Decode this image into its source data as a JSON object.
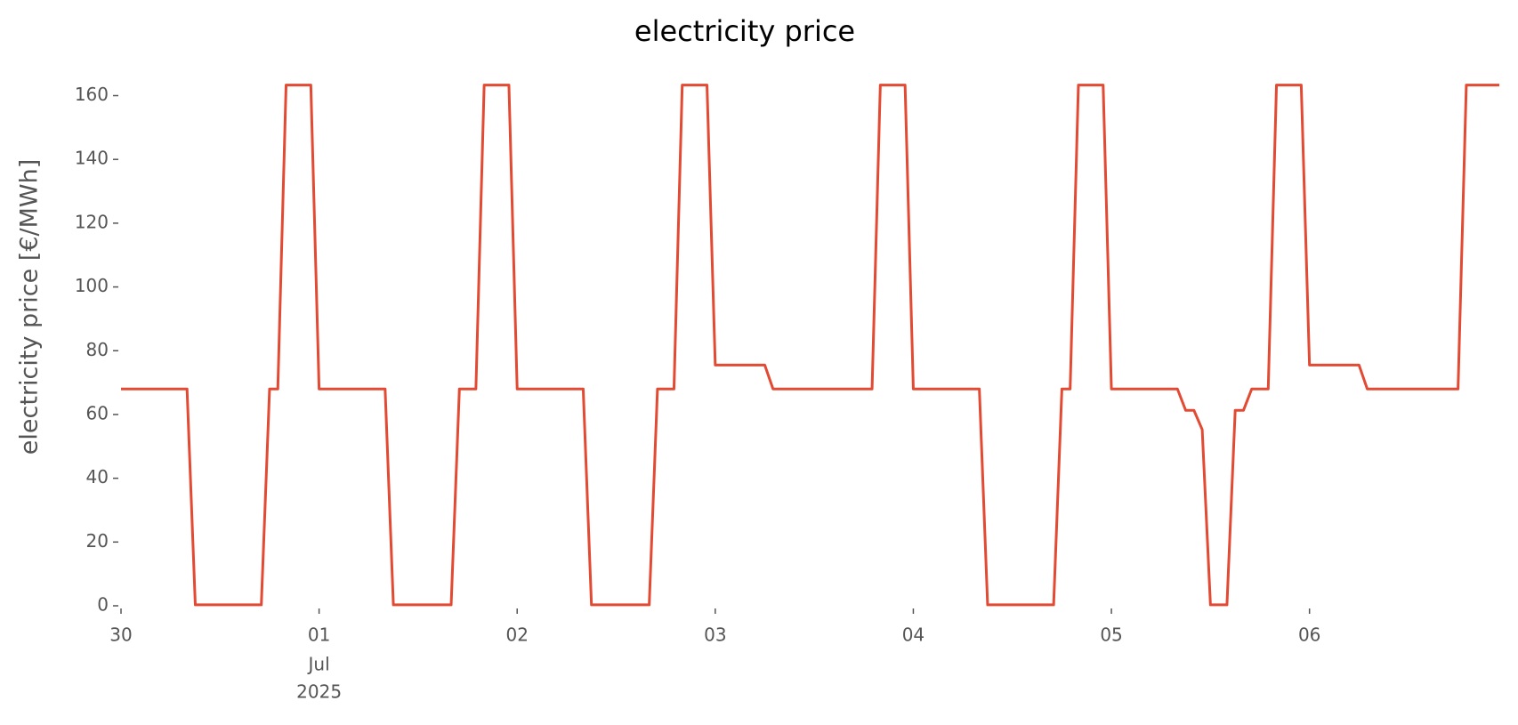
{
  "chart_data": {
    "type": "line",
    "title": "electricity price",
    "ylabel": "electricity price [€/MWh]",
    "x": [
      0,
      1,
      2,
      3,
      4,
      5,
      6,
      7,
      8,
      9,
      10,
      11,
      12,
      13,
      14,
      15,
      16,
      17,
      18,
      19,
      20,
      21,
      22,
      23,
      24,
      25,
      26,
      27,
      28,
      29,
      30,
      31,
      32,
      33,
      34,
      35,
      36,
      37,
      38,
      39,
      40,
      41,
      42,
      43,
      44,
      45,
      46,
      47,
      48,
      49,
      50,
      51,
      52,
      53,
      54,
      55,
      56,
      57,
      58,
      59,
      60,
      61,
      62,
      63,
      64,
      65,
      66,
      67,
      68,
      69,
      70,
      71,
      72,
      73,
      74,
      75,
      76,
      77,
      78,
      79,
      80,
      81,
      82,
      83,
      84,
      85,
      86,
      87,
      88,
      89,
      90,
      91,
      92,
      93,
      94,
      95,
      96,
      97,
      98,
      99,
      100,
      101,
      102,
      103,
      104,
      105,
      106,
      107,
      108,
      109,
      110,
      111,
      112,
      113,
      114,
      115,
      116,
      117,
      118,
      119,
      120,
      121,
      122,
      123,
      124,
      125,
      126,
      127,
      128,
      129,
      130,
      131,
      132,
      133,
      134,
      135,
      136,
      137,
      138,
      139,
      140,
      141,
      142,
      143,
      144,
      145,
      146,
      147,
      148,
      149,
      150,
      151,
      152,
      153,
      154,
      155,
      156,
      157,
      158,
      159,
      160,
      161,
      162,
      163,
      164,
      165,
      166,
      167
    ],
    "series": [
      {
        "name": "electricity price",
        "color": "#e24a33",
        "values": [
          68,
          68,
          68,
          68,
          68,
          68,
          68,
          68,
          68,
          0.3,
          0.3,
          0.3,
          0.3,
          0.3,
          0.3,
          0.3,
          0.3,
          0.3,
          68,
          68,
          163.3,
          163.3,
          163.3,
          163.3,
          68,
          68,
          68,
          68,
          68,
          68,
          68,
          68,
          68,
          0.3,
          0.3,
          0.3,
          0.3,
          0.3,
          0.3,
          0.3,
          0.3,
          68,
          68,
          68,
          163.3,
          163.3,
          163.3,
          163.3,
          68,
          68,
          68,
          68,
          68,
          68,
          68,
          68,
          68,
          0.3,
          0.3,
          0.3,
          0.3,
          0.3,
          0.3,
          0.3,
          0.3,
          68,
          68,
          68,
          163.3,
          163.3,
          163.3,
          163.3,
          75.5,
          75.5,
          75.5,
          75.5,
          75.5,
          75.5,
          75.5,
          68,
          68,
          68,
          68,
          68,
          68,
          68,
          68,
          68,
          68,
          68,
          68,
          68,
          163.3,
          163.3,
          163.3,
          163.3,
          68,
          68,
          68,
          68,
          68,
          68,
          68,
          68,
          68,
          0.3,
          0.3,
          0.3,
          0.3,
          0.3,
          0.3,
          0.3,
          0.3,
          0.3,
          68,
          68,
          163.3,
          163.3,
          163.3,
          163.3,
          68,
          68,
          68,
          68,
          68,
          68,
          68,
          68,
          68,
          61.3,
          61.3,
          55.3,
          0.3,
          0.3,
          0.3,
          61.3,
          61.3,
          68,
          68,
          68,
          163.3,
          163.3,
          163.3,
          163.3,
          75.5,
          75.5,
          75.5,
          75.5,
          75.5,
          75.5,
          75.5,
          68,
          68,
          68,
          68,
          68,
          68,
          68,
          68,
          68,
          68,
          68,
          68,
          163.3,
          163.3,
          163.3,
          163.3,
          163.3
        ]
      }
    ],
    "xlim": [
      0,
      167
    ],
    "xticks": [
      {
        "value": 0,
        "label": "30"
      },
      {
        "value": 24,
        "label": "01"
      },
      {
        "value": 48,
        "label": "02"
      },
      {
        "value": 72,
        "label": "03"
      },
      {
        "value": 96,
        "label": "04"
      },
      {
        "value": 120,
        "label": "05"
      },
      {
        "value": 144,
        "label": "06"
      }
    ],
    "x_sublabels": [
      "Jul",
      "2025"
    ],
    "ylim": [
      0,
      166
    ],
    "yticks": [
      0,
      20,
      40,
      60,
      80,
      100,
      120,
      140,
      160
    ]
  }
}
